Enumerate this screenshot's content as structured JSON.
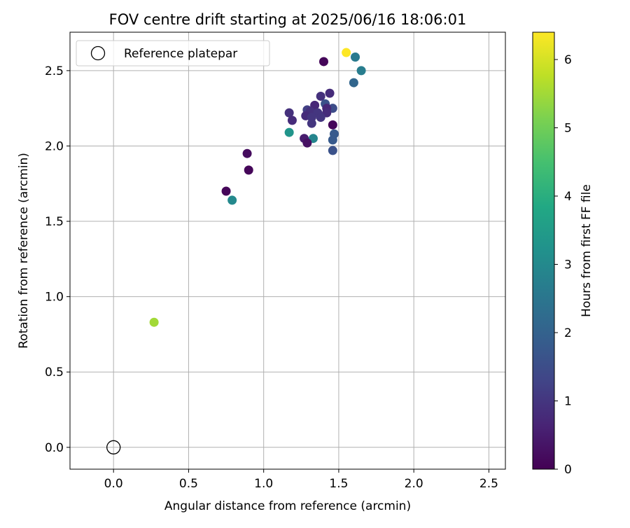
{
  "chart_data": {
    "type": "scatter",
    "title": "FOV centre drift starting at 2025/06/16 18:06:01",
    "xlabel": "Angular distance from reference (arcmin)",
    "ylabel": "Rotation from reference (arcmin)",
    "xlim": [
      -0.29,
      2.61
    ],
    "ylim": [
      -0.145,
      2.755
    ],
    "xticks": [
      0.0,
      0.5,
      1.0,
      1.5,
      2.0,
      2.5
    ],
    "xtick_labels": [
      "0.0",
      "0.5",
      "1.0",
      "1.5",
      "2.0",
      "2.5"
    ],
    "yticks": [
      0.0,
      0.5,
      1.0,
      1.5,
      2.0,
      2.5
    ],
    "ytick_labels": [
      "0.0",
      "0.5",
      "1.0",
      "1.5",
      "2.0",
      "2.5"
    ],
    "grid": true,
    "legend": {
      "placement": "top-left",
      "entries": [
        {
          "label": "Reference platepar",
          "marker": "open-circle",
          "color": "#000000"
        }
      ]
    },
    "reference_point": {
      "x": 0.0,
      "y": 0.0
    },
    "colorbar": {
      "label": "Hours from first FF file",
      "colormap": "viridis",
      "range": [
        0,
        6.4
      ],
      "ticks": [
        0,
        1,
        2,
        3,
        4,
        5,
        6
      ],
      "tick_labels": [
        "0",
        "1",
        "2",
        "3",
        "4",
        "5",
        "6"
      ]
    },
    "points": [
      {
        "x": 1.4,
        "y": 2.56,
        "hours": 0.1
      },
      {
        "x": 1.55,
        "y": 2.62,
        "hours": 6.4
      },
      {
        "x": 1.61,
        "y": 2.59,
        "hours": 2.6
      },
      {
        "x": 1.65,
        "y": 2.5,
        "hours": 2.7
      },
      {
        "x": 1.6,
        "y": 2.42,
        "hours": 2.1
      },
      {
        "x": 1.44,
        "y": 2.35,
        "hours": 0.8
      },
      {
        "x": 1.38,
        "y": 2.33,
        "hours": 0.9
      },
      {
        "x": 1.41,
        "y": 2.28,
        "hours": 1.6
      },
      {
        "x": 1.34,
        "y": 2.27,
        "hours": 0.7
      },
      {
        "x": 1.46,
        "y": 2.25,
        "hours": 1.5
      },
      {
        "x": 1.42,
        "y": 2.25,
        "hours": 0.7
      },
      {
        "x": 1.29,
        "y": 2.24,
        "hours": 1.2
      },
      {
        "x": 1.31,
        "y": 2.23,
        "hours": 0.9
      },
      {
        "x": 1.36,
        "y": 2.22,
        "hours": 1.0
      },
      {
        "x": 1.42,
        "y": 2.22,
        "hours": 0.8
      },
      {
        "x": 1.17,
        "y": 2.22,
        "hours": 0.9
      },
      {
        "x": 1.28,
        "y": 2.2,
        "hours": 0.8
      },
      {
        "x": 1.32,
        "y": 2.19,
        "hours": 1.0
      },
      {
        "x": 1.38,
        "y": 2.19,
        "hours": 1.0
      },
      {
        "x": 1.19,
        "y": 2.17,
        "hours": 0.8
      },
      {
        "x": 1.32,
        "y": 2.15,
        "hours": 1.0
      },
      {
        "x": 1.46,
        "y": 2.14,
        "hours": 0.1
      },
      {
        "x": 1.17,
        "y": 2.09,
        "hours": 3.3
      },
      {
        "x": 1.47,
        "y": 2.08,
        "hours": 1.8
      },
      {
        "x": 1.27,
        "y": 2.05,
        "hours": 0.5
      },
      {
        "x": 1.33,
        "y": 2.05,
        "hours": 2.9
      },
      {
        "x": 1.46,
        "y": 2.04,
        "hours": 1.8
      },
      {
        "x": 1.29,
        "y": 2.02,
        "hours": 0.3
      },
      {
        "x": 1.46,
        "y": 1.97,
        "hours": 1.6
      },
      {
        "x": 0.89,
        "y": 1.95,
        "hours": 0.2
      },
      {
        "x": 0.9,
        "y": 1.84,
        "hours": 0.1
      },
      {
        "x": 0.75,
        "y": 1.7,
        "hours": 0.1
      },
      {
        "x": 0.79,
        "y": 1.64,
        "hours": 3.0
      },
      {
        "x": 0.27,
        "y": 0.83,
        "hours": 5.5
      }
    ]
  }
}
